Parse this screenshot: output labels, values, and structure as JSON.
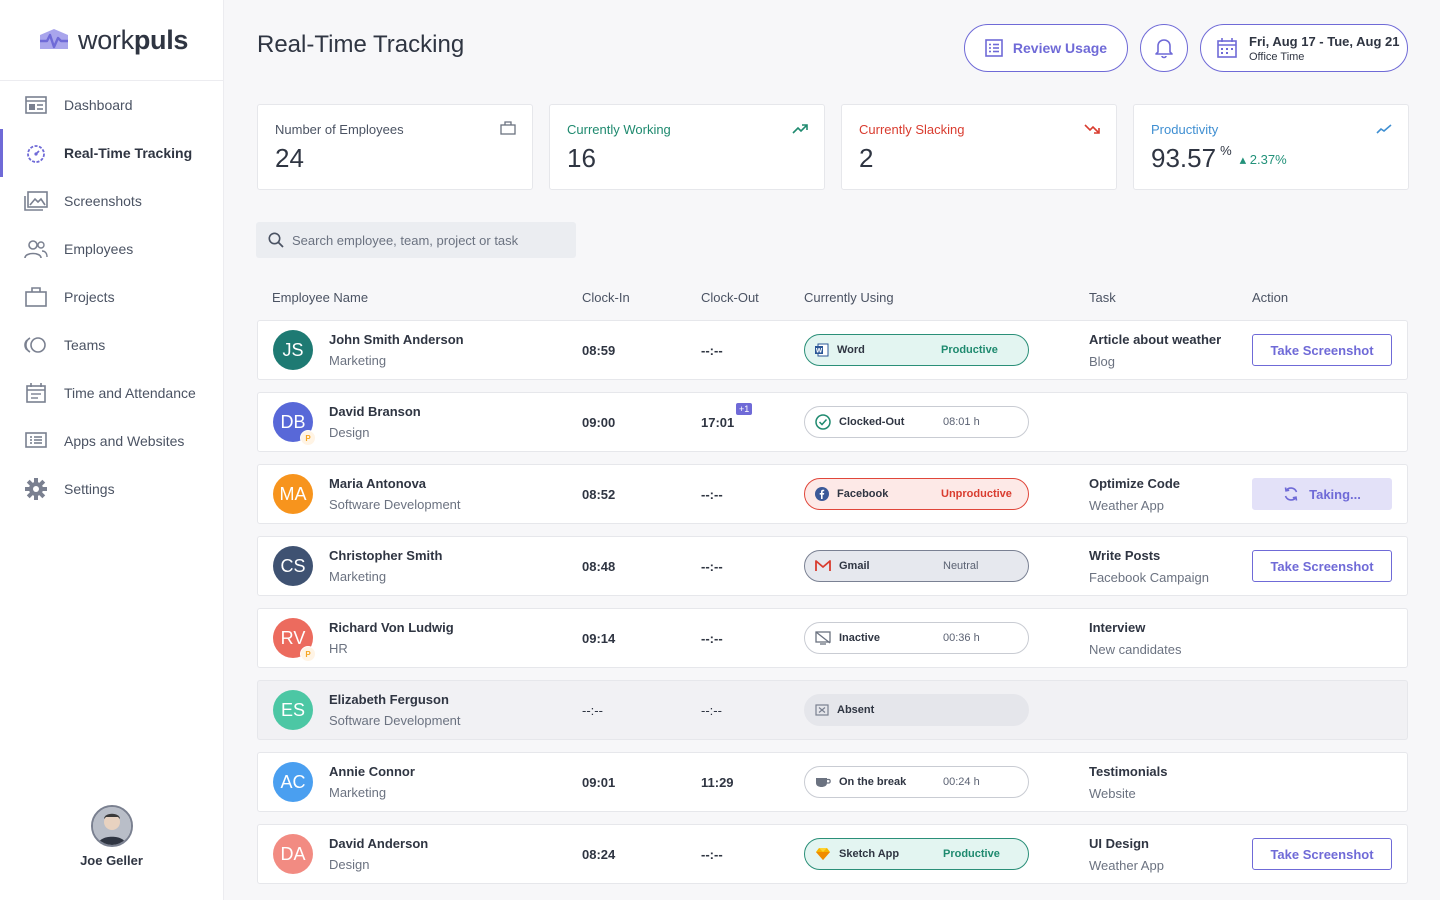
{
  "brand": {
    "name_light": "work",
    "name_bold": "puls",
    "accent": "#6f6ad7"
  },
  "sidebar": {
    "items": [
      {
        "label": "Dashboard",
        "icon": "dashboard-icon"
      },
      {
        "label": "Real-Time Tracking",
        "icon": "timer-icon",
        "active": true
      },
      {
        "label": "Screenshots",
        "icon": "screenshots-icon"
      },
      {
        "label": "Employees",
        "icon": "employees-icon"
      },
      {
        "label": "Projects",
        "icon": "briefcase-icon"
      },
      {
        "label": "Teams",
        "icon": "teams-icon"
      },
      {
        "label": "Time and Attendance",
        "icon": "calendar-icon"
      },
      {
        "label": "Apps and Websites",
        "icon": "apps-icon"
      },
      {
        "label": "Settings",
        "icon": "gear-icon"
      }
    ],
    "user": {
      "name": "Joe Geller"
    }
  },
  "header": {
    "title": "Real-Time Tracking",
    "review_label": "Review Usage",
    "date_range": "Fri, Aug 17 - Tue, Aug 21",
    "date_sub": "Office Time"
  },
  "stats": [
    {
      "label": "Number of Employees",
      "value": "24",
      "color": "#4b5363"
    },
    {
      "label": "Currently Working",
      "value": "16",
      "color": "#1f8a6f"
    },
    {
      "label": "Currently Slacking",
      "value": "2",
      "color": "#d93c2f"
    },
    {
      "label": "Productivity",
      "value": "93.57",
      "unit": "%",
      "delta": "2.37%",
      "color": "#3f8fd2"
    }
  ],
  "search": {
    "placeholder": "Search employee, team, project or task"
  },
  "table": {
    "headers": [
      "Employee Name",
      "Clock-In",
      "Clock-Out",
      "Currently Using",
      "Task",
      "Action"
    ],
    "rows": [
      {
        "initials": "JS",
        "color": "#1e7a73",
        "name": "John Smith Anderson",
        "dept": "Marketing",
        "clock_in": "08:59",
        "clock_out": "--:--",
        "app": "Word",
        "app_icon": "word-icon",
        "status": "Productive",
        "status_type": "prod",
        "task": "Article about weather",
        "project": "Blog",
        "action": "Take Screenshot"
      },
      {
        "initials": "DB",
        "color": "#5868d8",
        "badge": "P",
        "name": "David Branson",
        "dept": "Design",
        "clock_in": "09:00",
        "clock_out": "17:01",
        "plus": "+1",
        "app": "Clocked-Out",
        "app_icon": "check-circle-icon",
        "status": "08:01 h",
        "status_type": "plain",
        "task": "",
        "project": "",
        "action": ""
      },
      {
        "initials": "MA",
        "color": "#f7941d",
        "name": "Maria Antonova",
        "dept": "Software Development",
        "clock_in": "08:52",
        "clock_out": "--:--",
        "app": "Facebook",
        "app_icon": "facebook-icon",
        "status": "Unproductive",
        "status_type": "unprod",
        "task": "Optimize Code",
        "project": "Weather App",
        "action": "Taking...",
        "action_type": "taking"
      },
      {
        "initials": "CS",
        "color": "#3f5272",
        "name": "Christopher Smith",
        "dept": "Marketing",
        "clock_in": "08:48",
        "clock_out": "--:--",
        "app": "Gmail",
        "app_icon": "gmail-icon",
        "status": "Neutral",
        "status_type": "neutral",
        "task": "Write Posts",
        "project": "Facebook Campaign",
        "action": "Take Screenshot"
      },
      {
        "initials": "RV",
        "color": "#ec6b5e",
        "badge": "P",
        "name": "Richard Von Ludwig",
        "dept": "HR",
        "clock_in": "09:14",
        "clock_out": "--:--",
        "app": "Inactive",
        "app_icon": "inactive-icon",
        "status": "00:36 h",
        "status_type": "plain",
        "task": "Interview",
        "project": "New candidates",
        "action": ""
      },
      {
        "initials": "ES",
        "color": "#4cc7a4",
        "name": "Elizabeth Ferguson",
        "dept": "Software Development",
        "clock_in": "--:--",
        "clock_out": "--:--",
        "app": "Absent",
        "app_icon": "absent-icon",
        "status": "",
        "status_type": "absentp",
        "absent": true,
        "task": "",
        "project": "",
        "action": ""
      },
      {
        "initials": "AC",
        "color": "#4a9ff0",
        "name": "Annie Connor",
        "dept": "Marketing",
        "clock_in": "09:01",
        "clock_out": "11:29",
        "app": "On the break",
        "app_icon": "coffee-icon",
        "status": "00:24 h",
        "status_type": "plain",
        "task": "Testimonials",
        "project": "Website",
        "action": ""
      },
      {
        "initials": "DA",
        "color": "#f28b82",
        "name": "David Anderson",
        "dept": "Design",
        "clock_in": "08:24",
        "clock_out": "--:--",
        "app": "Sketch App",
        "app_icon": "sketch-icon",
        "status": "Productive",
        "status_type": "prod",
        "task": "UI Design",
        "project": "Weather App",
        "action": "Take Screenshot"
      }
    ]
  }
}
